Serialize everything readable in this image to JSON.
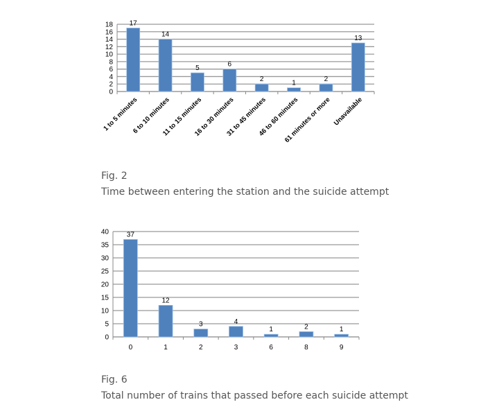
{
  "chart_data": [
    {
      "type": "bar",
      "categories": [
        "1 to 5 minutes",
        "6 to 10 minutes",
        "11 to 15 minutes",
        "16 to 30 minutes",
        "31 to 45 minutes",
        "46 to 60 minutes",
        "61 minutes or more",
        "Unavailable"
      ],
      "values": [
        17,
        14,
        5,
        6,
        2,
        1,
        2,
        13
      ],
      "ylim": [
        0,
        18
      ],
      "yticks": [
        0,
        2,
        4,
        6,
        8,
        10,
        12,
        14,
        16,
        18
      ],
      "grid": true,
      "bar_color": "#4f81bd",
      "data_labels": true,
      "caption_label": "Fig. 2",
      "caption": "Time between entering the station and the suicide attempt"
    },
    {
      "type": "bar",
      "categories": [
        "0",
        "1",
        "2",
        "3",
        "6",
        "8",
        "9"
      ],
      "values": [
        37,
        12,
        3,
        4,
        1,
        2,
        1
      ],
      "ylim": [
        0,
        40
      ],
      "yticks": [
        0,
        5,
        10,
        15,
        20,
        25,
        30,
        35,
        40
      ],
      "grid": true,
      "bar_color": "#4f81bd",
      "data_labels": true,
      "caption_label": "Fig. 6",
      "caption": "Total number of trains that passed before each suicide attempt"
    }
  ]
}
